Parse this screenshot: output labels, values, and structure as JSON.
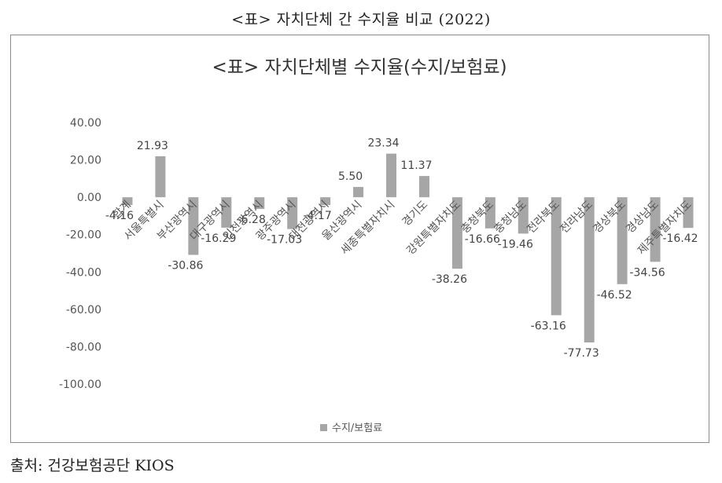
{
  "page_title": "<표> 자치단체 간 수지율 비교 (2022)",
  "source": "출처: 건강보험공단 KIOS",
  "chart_data": {
    "type": "bar",
    "title": "<표> 자치단체별 수지율(수지/보험료)",
    "xlabel": "",
    "ylabel": "",
    "ylim": [
      -100,
      40
    ],
    "yticks": [
      "40.00",
      "20.00",
      "0.00",
      "-20.00",
      "-40.00",
      "-60.00",
      "-80.00",
      "-100.00"
    ],
    "grid": false,
    "legend_position": "bottom",
    "bar_color": "#a6a6a6",
    "categories": [
      "합계",
      "서울특별시",
      "부산광역시",
      "대구광역시",
      "인천광역시",
      "광주광역시",
      "대전광역시",
      "울산광역시",
      "세종특별자치시",
      "경기도",
      "강원특별자치도",
      "충청북도",
      "충청남도",
      "전라북도",
      "전라남도",
      "경상북도",
      "경상남도",
      "제주특별자치도"
    ],
    "series": [
      {
        "name": "수지/보험료",
        "values": [
          -4.16,
          21.93,
          -30.86,
          -16.29,
          -6.28,
          -17.03,
          -4.17,
          5.5,
          23.34,
          11.37,
          -38.26,
          -16.66,
          -19.46,
          -63.16,
          -77.73,
          -46.52,
          -34.56,
          -16.42
        ],
        "labels": [
          "-4.16",
          "21.93",
          "-30.86",
          "-16.29",
          "-6.28",
          "-17.03",
          "-4.17",
          "5.50",
          "23.34",
          "11.37",
          "-38.26",
          "-16.66",
          "-19.46",
          "-63.16",
          "-77.73",
          "-46.52",
          "-34.56",
          "-16.42"
        ]
      }
    ]
  }
}
